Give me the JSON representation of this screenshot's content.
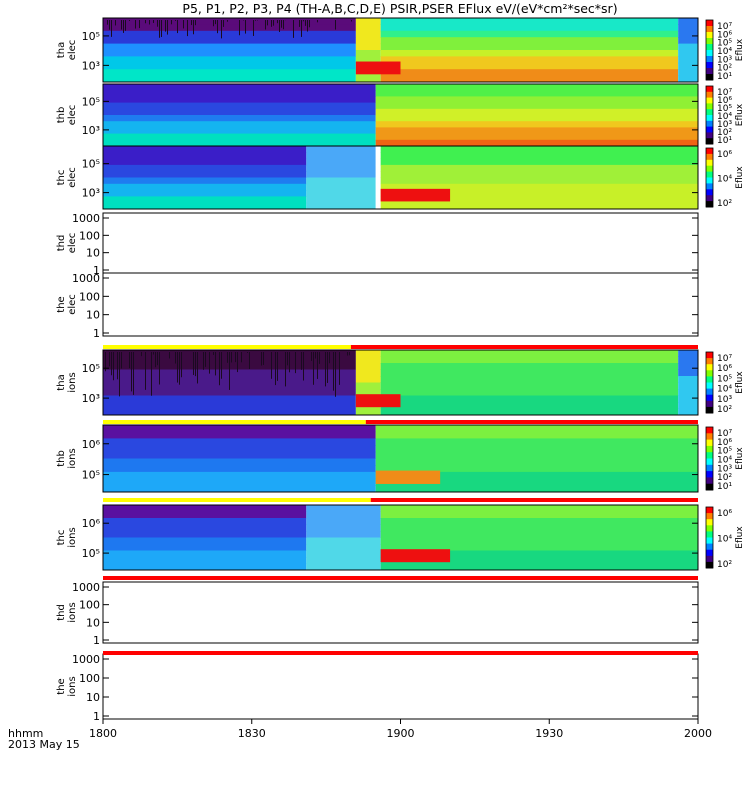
{
  "title": "P5, P1, P2, P3, P4 (TH-A,B,C,D,E) PSIR,PSER EFlux eV/(eV*cm²*sec*sr)",
  "time_axis": {
    "corner_label_1": "hhmm",
    "corner_label_2": "2013 May 15",
    "ticks": [
      "1800",
      "1830",
      "1900",
      "1930",
      "2000"
    ]
  },
  "colorbar_label": "Eflux",
  "chart_data": [
    {
      "type": "heatmap",
      "name": "tha elec",
      "ylabel": [
        "tha",
        "elec"
      ],
      "yscale": "log",
      "ytick_labels": [
        "10⁵",
        "10³"
      ],
      "colorbar_ticks": [
        "10⁷",
        "10⁶",
        "10⁵",
        "10⁴",
        "10³",
        "10²",
        "10¹"
      ],
      "segments": [
        {
          "t0": "1800",
          "t1": "1851",
          "pattern": "dark-top-cyan-bottom"
        },
        {
          "t0": "1851",
          "t1": "1856",
          "pattern": "yellow-green"
        },
        {
          "t0": "1856",
          "t1": "1956",
          "pattern": "cyan-top-orange-bottom"
        },
        {
          "t0": "1956",
          "t1": "2000",
          "pattern": "blue-gap"
        }
      ],
      "spots": [
        {
          "t0": "1851",
          "t1": "1900",
          "level": "red"
        }
      ]
    },
    {
      "type": "heatmap",
      "name": "thb elec",
      "ylabel": [
        "thb",
        "elec"
      ],
      "yscale": "log",
      "ytick_labels": [
        "10⁵",
        "10³"
      ],
      "colorbar_ticks": [
        "10⁷",
        "10⁶",
        "10⁵",
        "10⁴",
        "10³",
        "10²",
        "10¹"
      ],
      "segments": [
        {
          "t0": "1800",
          "t1": "1855",
          "pattern": "blue-top-cyan-bottom"
        },
        {
          "t0": "1855",
          "t1": "2000",
          "pattern": "green-top-orange-bottom"
        }
      ]
    },
    {
      "type": "heatmap",
      "name": "thc elec",
      "ylabel": [
        "thc",
        "elec"
      ],
      "yscale": "log",
      "ytick_labels": [
        "10⁵",
        "10³"
      ],
      "colorbar_ticks": [
        "10⁶",
        "10⁴",
        "10²"
      ],
      "segments": [
        {
          "t0": "1800",
          "t1": "1841",
          "pattern": "blue-top-cyan-bottom"
        },
        {
          "t0": "1841",
          "t1": "1855",
          "pattern": "light-blue"
        },
        {
          "t0": "1855",
          "t1": "1856",
          "pattern": "gap"
        },
        {
          "t0": "1856",
          "t1": "2000",
          "pattern": "green-yellow"
        }
      ],
      "spots": [
        {
          "t0": "1856",
          "t1": "1910",
          "level": "red"
        }
      ]
    },
    {
      "type": "empty",
      "name": "thd elec",
      "ylabel": [
        "thd",
        "elec"
      ],
      "yscale": "log",
      "ytick_labels": [
        "1000",
        "100",
        "10",
        "1"
      ]
    },
    {
      "type": "empty",
      "name": "the elec",
      "ylabel": [
        "the",
        "elec"
      ],
      "yscale": "log",
      "ytick_labels": [
        "1000",
        "100",
        "10",
        "1"
      ]
    },
    {
      "type": "heatmap",
      "name": "tha ions",
      "ylabel": [
        "tha",
        "ions"
      ],
      "yscale": "log",
      "ytick_labels": [
        "10⁵",
        "10³"
      ],
      "colorbar_ticks": [
        "10⁷",
        "10⁶",
        "10⁵",
        "10⁴",
        "10³",
        "10²"
      ],
      "segments": [
        {
          "t0": "1800",
          "t1": "1851",
          "pattern": "dark-ions"
        },
        {
          "t0": "1851",
          "t1": "1856",
          "pattern": "yellow-green"
        },
        {
          "t0": "1856",
          "t1": "1956",
          "pattern": "green-ions"
        },
        {
          "t0": "1956",
          "t1": "2000",
          "pattern": "blue-gap"
        }
      ],
      "spots": [
        {
          "t0": "1851",
          "t1": "1900",
          "level": "red"
        }
      ]
    },
    {
      "type": "heatmap",
      "name": "thb ions",
      "ylabel": [
        "thb",
        "ions"
      ],
      "yscale": "log",
      "ytick_labels": [
        "10⁶",
        "10⁵"
      ],
      "colorbar_ticks": [
        "10⁷",
        "10⁶",
        "10⁵",
        "10⁴",
        "10³",
        "10²",
        "10¹"
      ],
      "segments": [
        {
          "t0": "1800",
          "t1": "1855",
          "pattern": "blue-ions"
        },
        {
          "t0": "1855",
          "t1": "2000",
          "pattern": "green-ions"
        }
      ],
      "spots": [
        {
          "t0": "1855",
          "t1": "1908",
          "level": "orange"
        }
      ]
    },
    {
      "type": "heatmap",
      "name": "thc ions",
      "ylabel": [
        "thc",
        "ions"
      ],
      "yscale": "log",
      "ytick_labels": [
        "10⁶",
        "10⁵"
      ],
      "colorbar_ticks": [
        "10⁶",
        "10⁴",
        "10²"
      ],
      "segments": [
        {
          "t0": "1800",
          "t1": "1841",
          "pattern": "blue-ions"
        },
        {
          "t0": "1841",
          "t1": "1856",
          "pattern": "light-blue"
        },
        {
          "t0": "1856",
          "t1": "2000",
          "pattern": "green-ions"
        }
      ],
      "spots": [
        {
          "t0": "1856",
          "t1": "1910",
          "level": "red"
        }
      ]
    },
    {
      "type": "empty",
      "name": "thd ions",
      "ylabel": [
        "thd",
        "ions"
      ],
      "yscale": "log",
      "ytick_labels": [
        "1000",
        "100",
        "10",
        "1"
      ]
    },
    {
      "type": "empty",
      "name": "the ions",
      "ylabel": [
        "the",
        "ions"
      ],
      "yscale": "log",
      "ytick_labels": [
        "1000",
        "100",
        "10",
        "1"
      ]
    }
  ],
  "mode_bars": [
    {
      "name": "tha mode bar",
      "segments": [
        {
          "t0": "1800",
          "t1": "1850",
          "color": "#ffff00"
        },
        {
          "t0": "1850",
          "t1": "2000",
          "color": "#ff0000"
        }
      ]
    },
    {
      "name": "thb mode bar",
      "segments": [
        {
          "t0": "1800",
          "t1": "1853",
          "color": "#ffff00"
        },
        {
          "t0": "1853",
          "t1": "2000",
          "color": "#ff0000"
        }
      ]
    },
    {
      "name": "thc mode bar",
      "segments": [
        {
          "t0": "1800",
          "t1": "1854",
          "color": "#ffff00"
        },
        {
          "t0": "1854",
          "t1": "2000",
          "color": "#ff0000"
        }
      ]
    },
    {
      "name": "thd mode bar",
      "segments": [
        {
          "t0": "1800",
          "t1": "2000",
          "color": "#ff0000"
        }
      ]
    },
    {
      "name": "the mode bar",
      "segments": [
        {
          "t0": "1800",
          "t1": "2000",
          "color": "#ff0000"
        }
      ]
    }
  ]
}
